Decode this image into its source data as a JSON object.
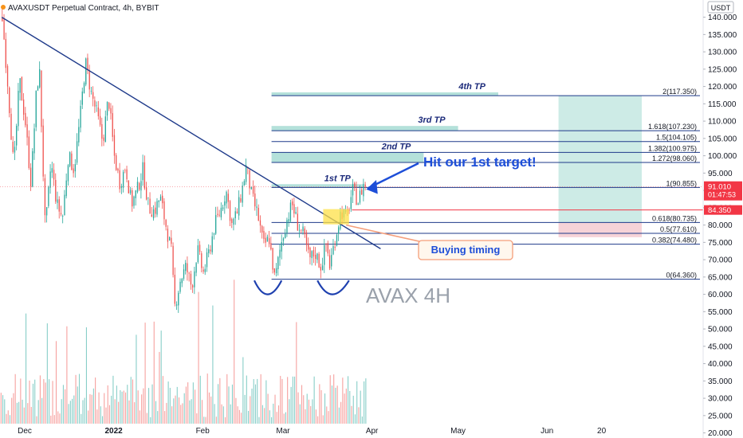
{
  "header": {
    "title": "AVAXUSDT Perpetual Contract, 4h, BYBIT",
    "currency": "USDT"
  },
  "colors": {
    "up": "#26a69a",
    "down": "#ef5350",
    "fib_line": "#1e3a8a",
    "tp_box": "#a7dcd3",
    "target_zone": "#cdebe6",
    "stop_zone": "#f7d3d8",
    "annotation_blue": "#1d4ed8",
    "annotation_border": "#f59e7a",
    "watermark": "#9aa1ab",
    "price_badge": "#f23645"
  },
  "chart_data": {
    "type": "candlestick",
    "title": "AVAXUSDT Perpetual Contract, 4h, BYBIT",
    "watermark": "AVAX 4H",
    "ylim": [
      18,
      143
    ],
    "y_ticks": [
      20,
      25,
      30,
      35,
      40,
      45,
      50,
      55,
      60,
      65,
      70,
      75,
      80,
      85,
      90,
      95,
      100,
      105,
      110,
      115,
      120,
      125,
      130,
      135,
      140
    ],
    "x_ticks": [
      {
        "label": "Dec",
        "day": 0
      },
      {
        "label": "2022",
        "day": 31
      },
      {
        "label": "Feb",
        "day": 62
      },
      {
        "label": "Mar",
        "day": 90
      },
      {
        "label": "Apr",
        "day": 121
      },
      {
        "label": "May",
        "day": 151
      },
      {
        "label": "Jun",
        "day": 182
      },
      {
        "label": "20",
        "day": 201
      }
    ],
    "price_path": [
      [
        -8,
        140
      ],
      [
        -6,
        120
      ],
      [
        -4,
        96
      ],
      [
        -2,
        122
      ],
      [
        0,
        110
      ],
      [
        2,
        92
      ],
      [
        4,
        120
      ],
      [
        5,
        124
      ],
      [
        7,
        78
      ],
      [
        9,
        98
      ],
      [
        11,
        86
      ],
      [
        13,
        82
      ],
      [
        15,
        100
      ],
      [
        17,
        96
      ],
      [
        19,
        110
      ],
      [
        21,
        127
      ],
      [
        23,
        118
      ],
      [
        25,
        112
      ],
      [
        27,
        104
      ],
      [
        29,
        117
      ],
      [
        31,
        100
      ],
      [
        33,
        92
      ],
      [
        35,
        97
      ],
      [
        37,
        86
      ],
      [
        39,
        90
      ],
      [
        41,
        96
      ],
      [
        43,
        85
      ],
      [
        45,
        84
      ],
      [
        47,
        88
      ],
      [
        49,
        80
      ],
      [
        51,
        72
      ],
      [
        52,
        56
      ],
      [
        54,
        64
      ],
      [
        56,
        68
      ],
      [
        58,
        62
      ],
      [
        60,
        73
      ],
      [
        62,
        66
      ],
      [
        64,
        72
      ],
      [
        66,
        80
      ],
      [
        68,
        84
      ],
      [
        70,
        90
      ],
      [
        72,
        80
      ],
      [
        74,
        84
      ],
      [
        76,
        92
      ],
      [
        77,
        97
      ],
      [
        79,
        88
      ],
      [
        81,
        83
      ],
      [
        83,
        74
      ],
      [
        85,
        76
      ],
      [
        87,
        64
      ],
      [
        89,
        74
      ],
      [
        91,
        81
      ],
      [
        93,
        86
      ],
      [
        95,
        80
      ],
      [
        97,
        77
      ],
      [
        99,
        70
      ],
      [
        101,
        72
      ],
      [
        103,
        68
      ],
      [
        105,
        75
      ],
      [
        106,
        68
      ],
      [
        108,
        76
      ],
      [
        110,
        84
      ],
      [
        112,
        82
      ],
      [
        114,
        90
      ],
      [
        116,
        87
      ],
      [
        118,
        92
      ],
      [
        119,
        91
      ]
    ],
    "trendline": {
      "from": [
        -8,
        140
      ],
      "to": [
        119,
        75
      ]
    },
    "fib_levels": [
      {
        "label": "0(64.360)",
        "value": 64.36
      },
      {
        "label": "0.382(74.480)",
        "value": 74.48
      },
      {
        "label": "0.5(77.610)",
        "value": 77.61
      },
      {
        "label": "0.618(80.735)",
        "value": 80.735
      },
      {
        "label": "1(90.855)",
        "value": 90.855
      },
      {
        "label": "1.272(98.060)",
        "value": 98.06
      },
      {
        "label": "1.382(100.975)",
        "value": 100.975
      },
      {
        "label": "1.5(104.105)",
        "value": 104.105
      },
      {
        "label": "1.618(107.230)",
        "value": 107.23
      },
      {
        "label": "2(117.350)",
        "value": 117.35
      }
    ],
    "take_profits": [
      {
        "label": "1st TP",
        "low": 90.855,
        "high": 91.8,
        "day_end": 118
      },
      {
        "label": "2nd TP",
        "low": 98.06,
        "high": 100.975,
        "day_end": 139
      },
      {
        "label": "3rd TP",
        "low": 107.23,
        "high": 108.6,
        "day_end": 151
      },
      {
        "label": "4th TP",
        "low": 117.35,
        "high": 118.3,
        "day_end": 165
      }
    ],
    "position": {
      "target_high": 117.35,
      "entry": 80.735,
      "stop": 76.5,
      "day_start": 186,
      "day_end": 215
    },
    "current_price": "91.010",
    "countdown": "01:47:53",
    "alert_price": "84.350",
    "alert_value": 84.35,
    "annotations": {
      "hit_target": "Hit our 1st target!",
      "buying_timing": "Buying timing"
    }
  }
}
